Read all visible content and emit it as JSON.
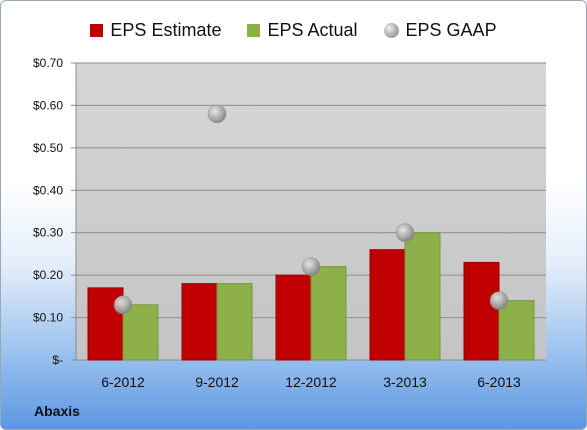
{
  "chart_data": {
    "type": "bar",
    "categories": [
      "6-2012",
      "9-2012",
      "12-2012",
      "3-2013",
      "6-2013"
    ],
    "series": [
      {
        "name": "EPS Estimate",
        "kind": "bar",
        "color": "#c00000",
        "values": [
          0.17,
          0.18,
          0.2,
          0.26,
          0.23
        ]
      },
      {
        "name": "EPS Actual",
        "kind": "bar",
        "color": "#8db04a",
        "values": [
          0.13,
          0.18,
          0.22,
          0.3,
          0.14
        ]
      },
      {
        "name": "EPS GAAP",
        "kind": "scatter",
        "color": "#a6a6a6",
        "values": [
          0.13,
          0.58,
          0.22,
          0.3,
          0.14
        ]
      }
    ],
    "yticks": [
      "$-",
      "$0.10",
      "$0.20",
      "$0.30",
      "$0.40",
      "$0.50",
      "$0.60",
      "$0.70"
    ],
    "ylim": [
      0,
      0.7
    ],
    "grid": true,
    "legend_position": "top"
  },
  "footer": {
    "company": "Abaxis"
  }
}
